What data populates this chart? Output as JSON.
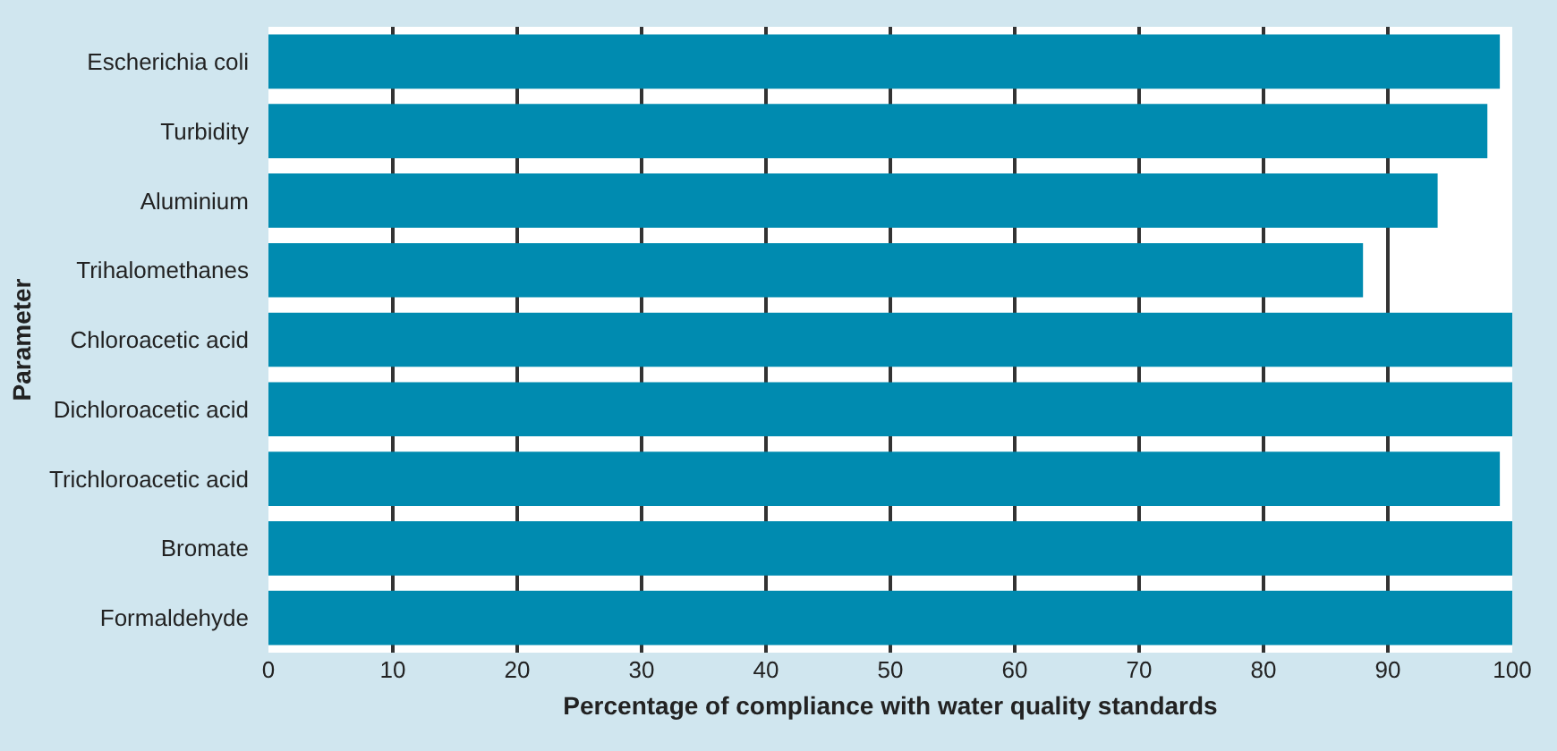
{
  "chart_data": {
    "type": "bar",
    "orientation": "horizontal",
    "categories": [
      "Escherichia coli",
      "Turbidity",
      "Aluminium",
      "Trihalomethanes",
      "Chloroacetic acid",
      "Dichloroacetic acid",
      "Trichloroacetic acid",
      "Bromate",
      "Formaldehyde"
    ],
    "values": [
      99,
      98,
      94,
      88,
      100,
      100,
      99,
      100,
      100
    ],
    "color": "#008bb0",
    "xlim": [
      0,
      100
    ],
    "xticks": [
      0,
      10,
      20,
      30,
      40,
      50,
      60,
      70,
      80,
      90,
      100
    ],
    "xlabel": "Percentage of compliance with water quality standards",
    "ylabel": "Parameter",
    "grid": "x"
  }
}
